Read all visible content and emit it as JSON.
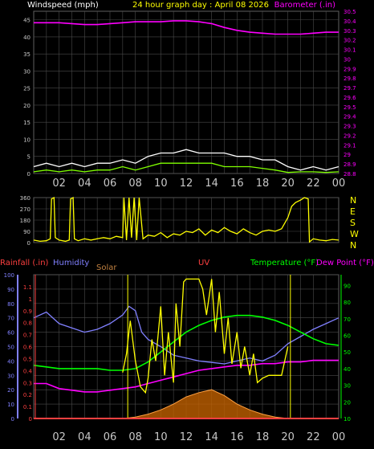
{
  "header": {
    "windspeed_label": "Windspeed (mph)",
    "title": "24 hour graph day : April 08 2026",
    "barometer_label": "Barometer (.in)"
  },
  "bottom_header": {
    "rainfall_label": "Rainfall (.in)",
    "humidity_label": "Humidity",
    "solar_label": "Solar",
    "uv_label": "UV",
    "temperature_label": "Temperature (°F)",
    "dewpoint_label": "Dew Point (°F)"
  },
  "colors": {
    "background": "#000000",
    "grid": "#4a4a4a",
    "axis_text": "#c8c8c8",
    "title_yellow": "#ffff00",
    "barometer": "#ff00ff",
    "wind_gust": "#ffffff",
    "wind_avg": "#80ff00",
    "wind_dir": "#ffff00",
    "rain": "#ff4040",
    "humidity": "#8080ff",
    "solar": "#ffa040",
    "solar_fill": "#c06000",
    "uv": "#ffff00",
    "temperature": "#00ff00",
    "dewpoint": "#ff00ff",
    "temp_axis": "#00ff00"
  },
  "chart_data": [
    {
      "type": "line",
      "name": "wind-and-barometer",
      "x_ticks": [
        "02",
        "04",
        "06",
        "08",
        "10",
        "12",
        "14",
        "16",
        "18",
        "20",
        "22",
        "00"
      ],
      "left_axis": {
        "label": "Windspeed (mph)",
        "ticks": [
          "0",
          "5",
          "10",
          "15",
          "20",
          "25",
          "30",
          "35",
          "40",
          "45"
        ],
        "ylim": [
          0,
          47.5
        ]
      },
      "right_axis": {
        "label": "Barometer (.in)",
        "ticks": [
          "28.8",
          "28.9",
          "29",
          "29.1",
          "29.2",
          "29.3",
          "29.4",
          "29.5",
          "29.6",
          "29.7",
          "29.8",
          "29.9",
          "30",
          "30.1",
          "30.2",
          "30.3",
          "30.4",
          "30.5"
        ],
        "ylim": [
          28.8,
          30.5
        ]
      },
      "series": [
        {
          "name": "Barometer",
          "axis": "right",
          "x": [
            0,
            1,
            2,
            3,
            4,
            5,
            6,
            7,
            8,
            9,
            10,
            11,
            12,
            13,
            14,
            15,
            16,
            17,
            18,
            19,
            20,
            21,
            22,
            23,
            24
          ],
          "values": [
            30.38,
            30.38,
            30.38,
            30.37,
            30.36,
            30.36,
            30.37,
            30.38,
            30.39,
            30.39,
            30.39,
            30.4,
            30.4,
            30.39,
            30.37,
            30.33,
            30.3,
            30.28,
            30.27,
            30.26,
            30.26,
            30.26,
            30.27,
            30.28,
            30.28
          ]
        },
        {
          "name": "Wind gust",
          "axis": "left",
          "x": [
            0,
            1,
            2,
            3,
            4,
            5,
            6,
            7,
            8,
            9,
            10,
            11,
            12,
            13,
            14,
            15,
            16,
            17,
            18,
            19,
            20,
            21,
            22,
            23,
            24
          ],
          "values": [
            2,
            3,
            2,
            3,
            2,
            3,
            3,
            4,
            3,
            5,
            6,
            6,
            7,
            6,
            6,
            6,
            5,
            5,
            4,
            4,
            2,
            1,
            2,
            1,
            2
          ]
        },
        {
          "name": "Wind average",
          "axis": "left",
          "x": [
            0,
            1,
            2,
            3,
            4,
            5,
            6,
            7,
            8,
            9,
            10,
            11,
            12,
            13,
            14,
            15,
            16,
            17,
            18,
            19,
            20,
            21,
            22,
            23,
            24
          ],
          "values": [
            0.5,
            1,
            0.5,
            1,
            0.5,
            1,
            1,
            2,
            1,
            2,
            3,
            3,
            3,
            3,
            3,
            2,
            2,
            2,
            1.5,
            1,
            0.3,
            0.5,
            0.5,
            0.3,
            0.5
          ]
        }
      ]
    },
    {
      "type": "line",
      "name": "wind-direction",
      "x_ticks": [
        "02",
        "04",
        "06",
        "08",
        "10",
        "12",
        "14",
        "16",
        "18",
        "20",
        "22",
        "00"
      ],
      "left_axis": {
        "ticks": [
          "0",
          "90",
          "180",
          "270",
          "360"
        ],
        "ylim": [
          0,
          360
        ]
      },
      "right_axis": {
        "ticks": [
          "N",
          "W",
          "S",
          "E",
          "N"
        ]
      },
      "series": [
        {
          "name": "Wind direction",
          "x": [
            0,
            0.5,
            1,
            1.3,
            1.4,
            1.6,
            1.7,
            2,
            2.5,
            2.8,
            2.9,
            3.1,
            3.2,
            3.5,
            4,
            4.5,
            5,
            5.5,
            6,
            6.5,
            7,
            7.1,
            7.3,
            7.5,
            7.7,
            7.9,
            8.1,
            8.3,
            8.6,
            9,
            9.5,
            10,
            10.5,
            11,
            11.5,
            12,
            12.5,
            13,
            13.5,
            14,
            14.5,
            15,
            15.5,
            16,
            16.5,
            17,
            17.5,
            18,
            18.5,
            19,
            19.5,
            20,
            20.3,
            20.6,
            21,
            21.3,
            21.6,
            21.7,
            22,
            22.5,
            23,
            23.5,
            24
          ],
          "values": [
            20,
            10,
            15,
            30,
            350,
            360,
            40,
            20,
            10,
            20,
            350,
            360,
            30,
            15,
            30,
            20,
            30,
            40,
            30,
            50,
            40,
            360,
            20,
            360,
            40,
            360,
            20,
            360,
            30,
            60,
            50,
            80,
            40,
            70,
            60,
            90,
            80,
            110,
            60,
            100,
            80,
            120,
            90,
            70,
            110,
            80,
            60,
            90,
            100,
            90,
            110,
            200,
            290,
            320,
            340,
            360,
            350,
            5,
            30,
            20,
            15,
            25,
            20
          ]
        }
      ]
    },
    {
      "type": "line",
      "name": "rain-humidity-solar-uv-temperature",
      "x_ticks": [
        "02",
        "04",
        "06",
        "08",
        "10",
        "12",
        "14",
        "16",
        "18",
        "20",
        "22",
        "00"
      ],
      "left_axis": {
        "label": "Humidity",
        "ticks": [
          "0",
          "10",
          "20",
          "30",
          "40",
          "50",
          "60",
          "70",
          "80",
          "90",
          "100"
        ],
        "ylim": [
          0,
          100
        ]
      },
      "rain_axis": {
        "label": "Rainfall (.in)",
        "ticks": [
          "0",
          "0.1",
          "0.2",
          "0.3",
          "0.4",
          "0.5",
          "0.6",
          "0.7",
          "0.8",
          "0.9",
          "1",
          "1.1"
        ],
        "ylim": [
          0,
          1.2
        ]
      },
      "right_axis": {
        "label": "Temperature (°F)",
        "ticks": [
          "10",
          "20",
          "30",
          "40",
          "50",
          "60",
          "70",
          "80",
          "90"
        ],
        "ylim": [
          10,
          96.5
        ]
      },
      "series": [
        {
          "name": "Humidity",
          "axis": "left",
          "x": [
            0,
            1,
            2,
            3,
            4,
            5,
            6,
            7,
            7.5,
            8,
            8.5,
            9,
            10,
            11,
            12,
            13,
            14,
            15,
            16,
            17,
            18,
            19,
            20,
            21,
            22,
            23,
            24
          ],
          "values": [
            70,
            74,
            66,
            63,
            60,
            62,
            66,
            72,
            78,
            75,
            60,
            55,
            50,
            44,
            42,
            40,
            39,
            38,
            40,
            42,
            40,
            44,
            52,
            57,
            62,
            66,
            70
          ]
        },
        {
          "name": "Temperature",
          "axis": "right",
          "x": [
            0,
            1,
            2,
            3,
            4,
            5,
            6,
            7,
            8,
            9,
            10,
            11,
            12,
            13,
            14,
            15,
            16,
            17,
            18,
            19,
            20,
            21,
            22,
            23,
            24
          ],
          "values": [
            42,
            41,
            40,
            40,
            40,
            40,
            39,
            39,
            40,
            44,
            50,
            56,
            62,
            66,
            69,
            71,
            72,
            72,
            71,
            69,
            66,
            62,
            58,
            55,
            54
          ]
        },
        {
          "name": "Dew Point",
          "axis": "right",
          "x": [
            0,
            1,
            2,
            3,
            4,
            5,
            6,
            7,
            8,
            9,
            10,
            11,
            12,
            13,
            14,
            15,
            16,
            17,
            18,
            19,
            20,
            21,
            22,
            23,
            24
          ],
          "values": [
            31,
            31,
            28,
            27,
            26,
            26,
            27,
            28,
            29,
            31,
            33,
            35,
            37,
            39,
            40,
            41,
            42,
            42,
            43,
            43,
            44,
            44,
            45,
            45,
            45
          ]
        },
        {
          "name": "Solar",
          "axis": "left",
          "x": [
            7,
            7.5,
            8,
            9,
            10,
            11,
            12,
            13,
            14,
            15,
            16,
            17,
            18,
            19,
            20
          ],
          "values": [
            0,
            0.5,
            1,
            3,
            6,
            10,
            15,
            18,
            20,
            16,
            10,
            6,
            3,
            1,
            0
          ]
        },
        {
          "name": "UV",
          "axis": "left",
          "x": [
            7,
            7.3,
            7.6,
            8,
            8.4,
            8.8,
            9,
            9.3,
            9.6,
            10,
            10.3,
            10.6,
            11,
            11.2,
            11.5,
            11.8,
            12,
            12.5,
            13,
            13.3,
            13.6,
            14,
            14.3,
            14.6,
            15,
            15.3,
            15.6,
            16,
            16.3,
            16.6,
            17,
            17.3,
            17.6,
            18,
            18.5,
            19,
            19.5,
            20
          ],
          "values": [
            32,
            45,
            68,
            40,
            22,
            18,
            28,
            55,
            40,
            78,
            30,
            60,
            25,
            80,
            50,
            95,
            97,
            97,
            97,
            90,
            72,
            97,
            60,
            88,
            45,
            70,
            38,
            60,
            35,
            50,
            30,
            45,
            25,
            28,
            30,
            30,
            30,
            50
          ]
        },
        {
          "name": "Rainfall",
          "axis": "rain",
          "x": [
            0,
            24
          ],
          "values": [
            0,
            0
          ]
        }
      ]
    }
  ]
}
